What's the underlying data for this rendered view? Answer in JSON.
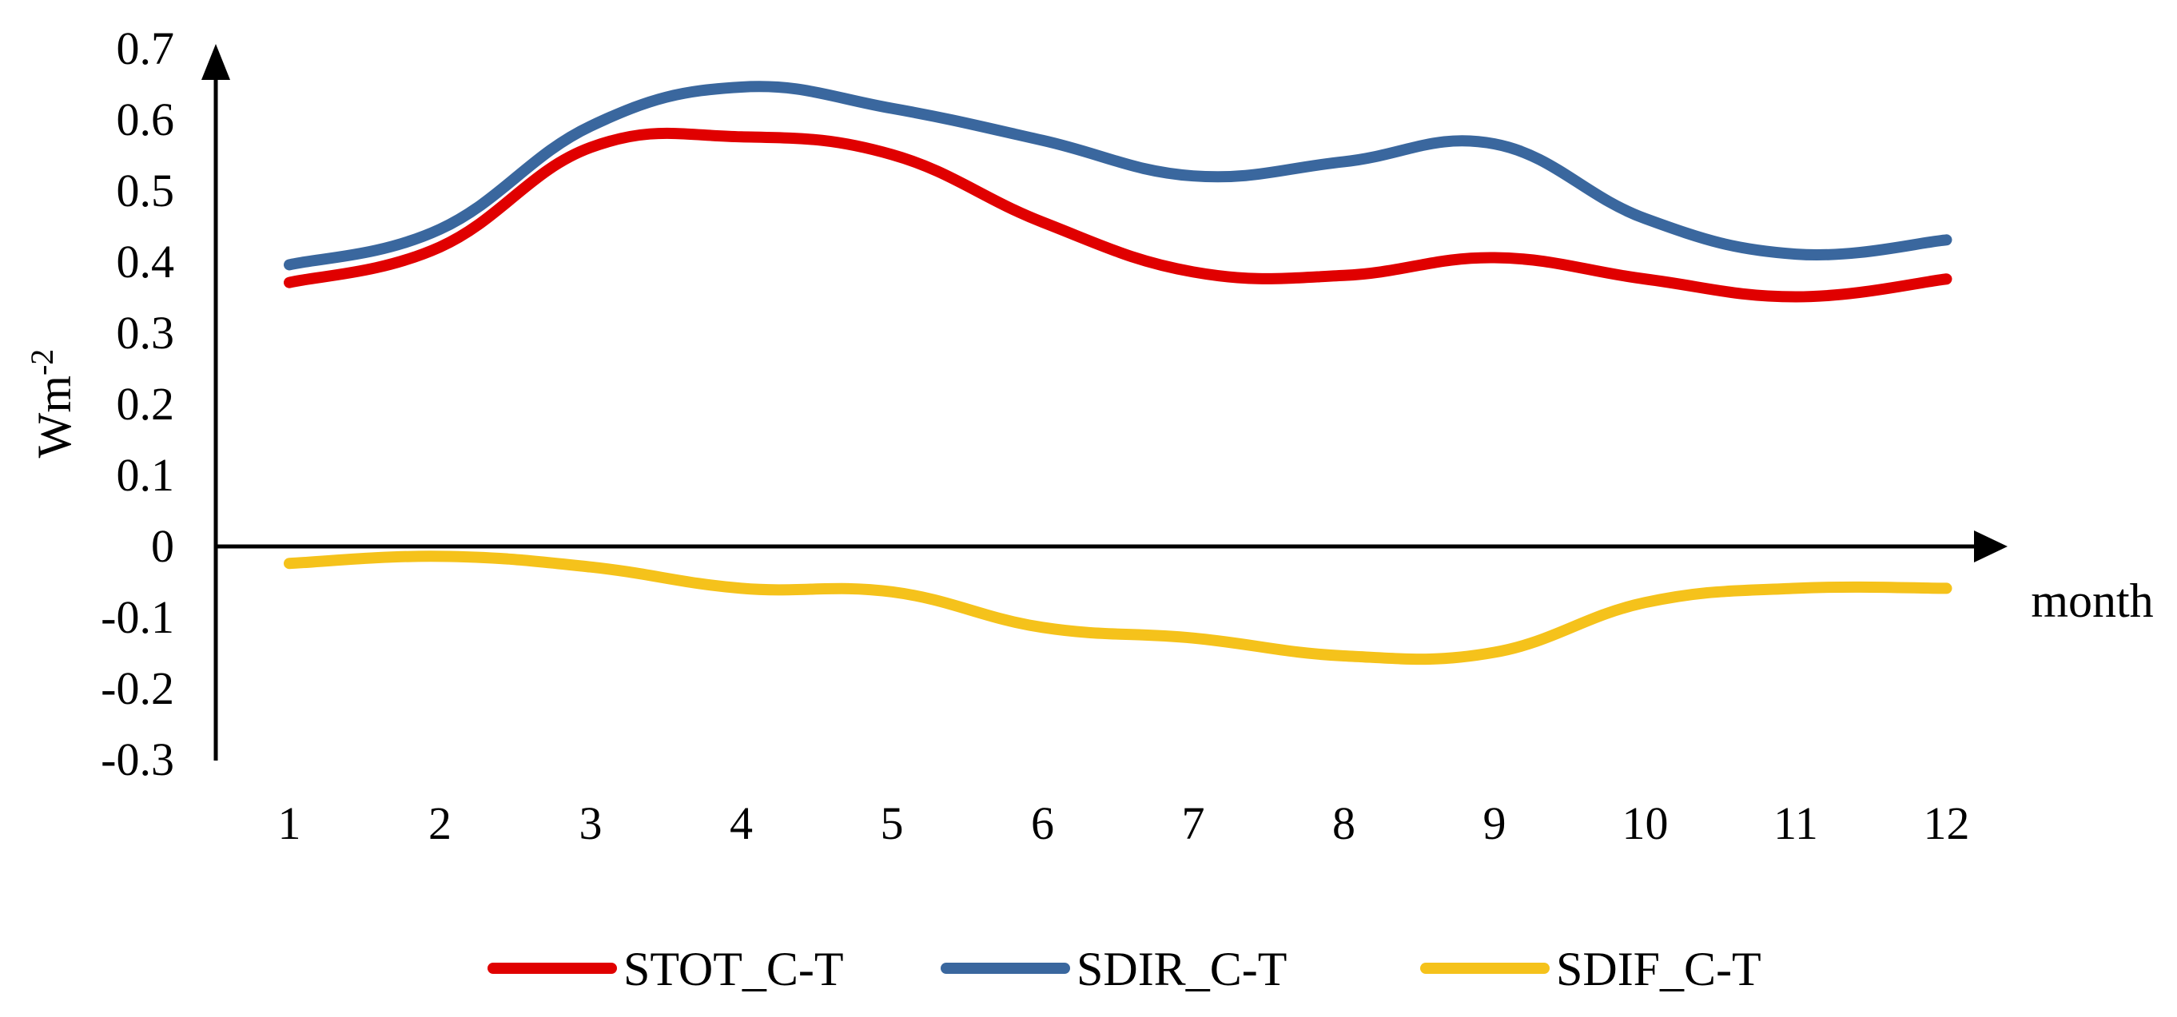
{
  "chart_data": {
    "type": "line",
    "title": "",
    "xlabel": "month",
    "ylabel_base": "Wm",
    "ylabel_exp": "-2",
    "categories": [
      "1",
      "2",
      "3",
      "4",
      "5",
      "6",
      "7",
      "8",
      "9",
      "10",
      "11",
      "12"
    ],
    "ylim": [
      -0.3,
      0.7
    ],
    "yticks": [
      "0.7",
      "0.6",
      "0.5",
      "0.4",
      "0.3",
      "0.2",
      "0.1",
      "0",
      "-0.1",
      "-0.2",
      "-0.3"
    ],
    "ytick_values": [
      0.7,
      0.6,
      0.5,
      0.4,
      0.3,
      0.2,
      0.1,
      0,
      -0.1,
      -0.2,
      -0.3
    ],
    "grid": false,
    "legend_position": "bottom",
    "series": [
      {
        "name": "STOT_C-T",
        "color": "#e00000",
        "values": [
          0.37,
          0.42,
          0.56,
          0.575,
          0.55,
          0.455,
          0.385,
          0.38,
          0.405,
          0.375,
          0.35,
          0.375
        ]
      },
      {
        "name": "SDIR_C-T",
        "color": "#3a679e",
        "values": [
          0.395,
          0.445,
          0.59,
          0.645,
          0.615,
          0.57,
          0.52,
          0.54,
          0.565,
          0.46,
          0.41,
          0.43
        ]
      },
      {
        "name": "SDIF_C-T",
        "color": "#f5c21b",
        "values": [
          -0.025,
          -0.015,
          -0.03,
          -0.06,
          -0.065,
          -0.115,
          -0.13,
          -0.155,
          -0.15,
          -0.08,
          -0.06,
          -0.06
        ]
      }
    ]
  }
}
